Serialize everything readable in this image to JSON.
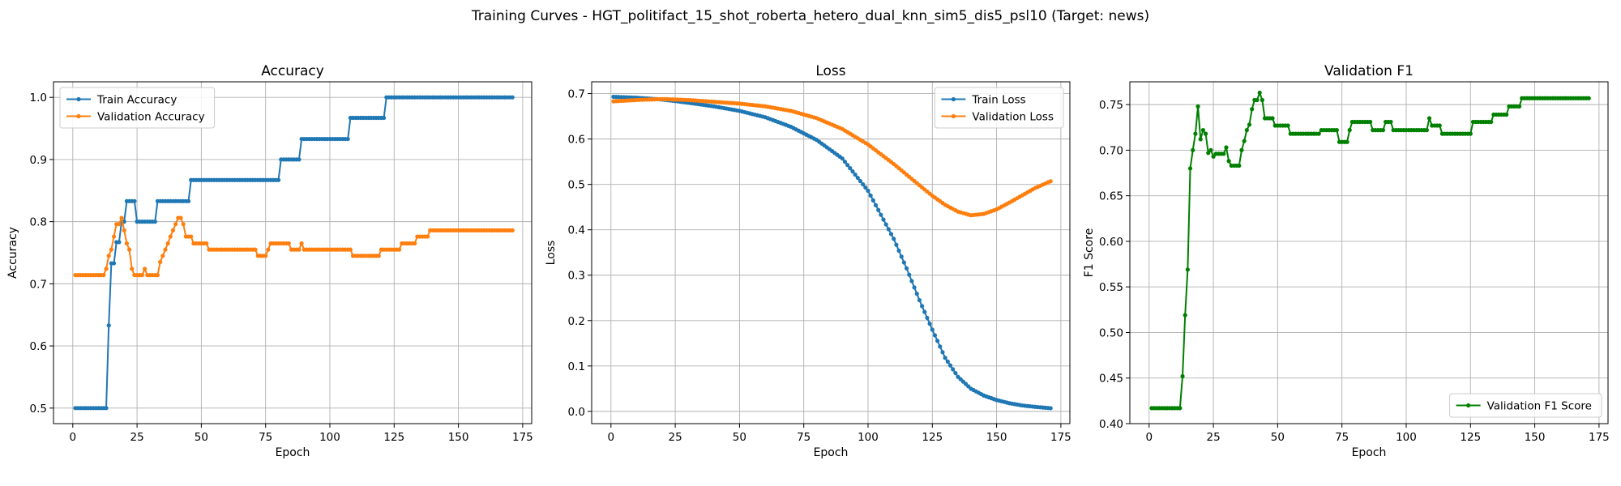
{
  "suptitle": "Training Curves - HGT_politifact_15_shot_roberta_hetero_dual_knn_sim5_dis5_psl10 (Target: news)",
  "chart_data": [
    {
      "type": "line",
      "title": "Accuracy",
      "xlabel": "Epoch",
      "ylabel": "Accuracy",
      "xlim": [
        -7.5,
        178.5
      ],
      "ylim": [
        0.475,
        1.025
      ],
      "xticks": [
        0,
        25,
        50,
        75,
        100,
        125,
        150,
        175
      ],
      "yticks": [
        0.5,
        0.6,
        0.7,
        0.8,
        0.9,
        1.0
      ],
      "ytick_labels": [
        "0.5",
        "0.6",
        "0.7",
        "0.8",
        "0.9",
        "1.0"
      ],
      "grid": true,
      "legend_position": "upper-left",
      "series": [
        {
          "name": "Train Accuracy",
          "color": "#1f77b4",
          "segments": [
            [
              1,
              0.5
            ],
            [
              13,
              0.5
            ],
            [
              14,
              0.633
            ],
            [
              15,
              0.733
            ],
            [
              16,
              0.733
            ],
            [
              17,
              0.767
            ],
            [
              18,
              0.767
            ],
            [
              19,
              0.8
            ],
            [
              20,
              0.8
            ],
            [
              21,
              0.833
            ],
            [
              24,
              0.833
            ],
            [
              25,
              0.8
            ],
            [
              32,
              0.8
            ],
            [
              33,
              0.833
            ],
            [
              45,
              0.833
            ],
            [
              46,
              0.867
            ],
            [
              80,
              0.867
            ],
            [
              81,
              0.9
            ],
            [
              88,
              0.9
            ],
            [
              89,
              0.933
            ],
            [
              107,
              0.933
            ],
            [
              108,
              0.967
            ],
            [
              121,
              0.967
            ],
            [
              122,
              1.0
            ],
            [
              171,
              1.0
            ]
          ]
        },
        {
          "name": "Validation Accuracy",
          "color": "#ff7f0e",
          "segments": [
            [
              1,
              0.714
            ],
            [
              12,
              0.714
            ],
            [
              13,
              0.724
            ],
            [
              14,
              0.745
            ],
            [
              15,
              0.755
            ],
            [
              16,
              0.776
            ],
            [
              17,
              0.796
            ],
            [
              18,
              0.796
            ],
            [
              19,
              0.806
            ],
            [
              20,
              0.786
            ],
            [
              21,
              0.765
            ],
            [
              22,
              0.755
            ],
            [
              23,
              0.724
            ],
            [
              24,
              0.714
            ],
            [
              27,
              0.714
            ],
            [
              28,
              0.724
            ],
            [
              29,
              0.714
            ],
            [
              33,
              0.714
            ],
            [
              34,
              0.735
            ],
            [
              35,
              0.745
            ],
            [
              36,
              0.755
            ],
            [
              37,
              0.765
            ],
            [
              38,
              0.776
            ],
            [
              39,
              0.786
            ],
            [
              40,
              0.796
            ],
            [
              41,
              0.806
            ],
            [
              42,
              0.806
            ],
            [
              43,
              0.796
            ],
            [
              44,
              0.776
            ],
            [
              46,
              0.776
            ],
            [
              47,
              0.765
            ],
            [
              52,
              0.765
            ],
            [
              53,
              0.755
            ],
            [
              71,
              0.755
            ],
            [
              72,
              0.745
            ],
            [
              75,
              0.745
            ],
            [
              76,
              0.755
            ],
            [
              77,
              0.765
            ],
            [
              84,
              0.765
            ],
            [
              85,
              0.755
            ],
            [
              88,
              0.755
            ],
            [
              89,
              0.765
            ],
            [
              90,
              0.755
            ],
            [
              108,
              0.755
            ],
            [
              109,
              0.745
            ],
            [
              119,
              0.745
            ],
            [
              120,
              0.755
            ],
            [
              127,
              0.755
            ],
            [
              128,
              0.765
            ],
            [
              133,
              0.765
            ],
            [
              134,
              0.776
            ],
            [
              138,
              0.776
            ],
            [
              139,
              0.786
            ],
            [
              171,
              0.786
            ]
          ]
        }
      ]
    },
    {
      "type": "line",
      "title": "Loss",
      "xlabel": "Epoch",
      "ylabel": "Loss",
      "xlim": [
        -7.5,
        178.5
      ],
      "ylim": [
        -0.027,
        0.726
      ],
      "xticks": [
        0,
        25,
        50,
        75,
        100,
        125,
        150,
        175
      ],
      "yticks": [
        0.0,
        0.1,
        0.2,
        0.3,
        0.4,
        0.5,
        0.6,
        0.7
      ],
      "ytick_labels": [
        "0.0",
        "0.1",
        "0.2",
        "0.3",
        "0.4",
        "0.5",
        "0.6",
        "0.7"
      ],
      "grid": true,
      "legend_position": "upper-right",
      "series": [
        {
          "name": "Train Loss",
          "color": "#1f77b4",
          "points": [
            [
              1,
              0.693
            ],
            [
              10,
              0.691
            ],
            [
              20,
              0.687
            ],
            [
              30,
              0.68
            ],
            [
              40,
              0.672
            ],
            [
              50,
              0.662
            ],
            [
              60,
              0.648
            ],
            [
              70,
              0.627
            ],
            [
              80,
              0.598
            ],
            [
              90,
              0.557
            ],
            [
              100,
              0.486
            ],
            [
              110,
              0.38
            ],
            [
              115,
              0.315
            ],
            [
              120,
              0.245
            ],
            [
              125,
              0.18
            ],
            [
              130,
              0.118
            ],
            [
              135,
              0.076
            ],
            [
              140,
              0.05
            ],
            [
              145,
              0.035
            ],
            [
              150,
              0.025
            ],
            [
              155,
              0.018
            ],
            [
              160,
              0.013
            ],
            [
              165,
              0.01
            ],
            [
              171,
              0.007
            ]
          ]
        },
        {
          "name": "Validation Loss",
          "color": "#ff7f0e",
          "points": [
            [
              1,
              0.683
            ],
            [
              10,
              0.686
            ],
            [
              20,
              0.688
            ],
            [
              30,
              0.686
            ],
            [
              40,
              0.682
            ],
            [
              50,
              0.678
            ],
            [
              60,
              0.672
            ],
            [
              70,
              0.662
            ],
            [
              80,
              0.646
            ],
            [
              90,
              0.622
            ],
            [
              100,
              0.588
            ],
            [
              110,
              0.545
            ],
            [
              120,
              0.498
            ],
            [
              125,
              0.475
            ],
            [
              130,
              0.455
            ],
            [
              135,
              0.44
            ],
            [
              140,
              0.432
            ],
            [
              145,
              0.435
            ],
            [
              150,
              0.445
            ],
            [
              155,
              0.46
            ],
            [
              160,
              0.476
            ],
            [
              165,
              0.492
            ],
            [
              171,
              0.507
            ]
          ]
        }
      ]
    },
    {
      "type": "line",
      "title": "Validation F1",
      "xlabel": "Epoch",
      "ylabel": "F1 Score",
      "xlim": [
        -7.5,
        178.5
      ],
      "ylim": [
        0.4,
        0.775
      ],
      "xticks": [
        0,
        25,
        50,
        75,
        100,
        125,
        150,
        175
      ],
      "yticks": [
        0.4,
        0.45,
        0.5,
        0.55,
        0.6,
        0.65,
        0.7,
        0.75
      ],
      "ytick_labels": [
        "0.40",
        "0.45",
        "0.50",
        "0.55",
        "0.60",
        "0.65",
        "0.70",
        "0.75"
      ],
      "grid": true,
      "legend_position": "lower-right",
      "series": [
        {
          "name": "Validation F1 Score",
          "color": "#008000",
          "segments": [
            [
              1,
              0.417
            ],
            [
              12,
              0.417
            ],
            [
              13,
              0.452
            ],
            [
              14,
              0.519
            ],
            [
              15,
              0.569
            ],
            [
              16,
              0.68
            ],
            [
              17,
              0.7
            ],
            [
              18,
              0.718
            ],
            [
              19,
              0.748
            ],
            [
              20,
              0.712
            ],
            [
              21,
              0.722
            ],
            [
              22,
              0.718
            ],
            [
              23,
              0.697
            ],
            [
              24,
              0.7
            ],
            [
              25,
              0.693
            ],
            [
              26,
              0.696
            ],
            [
              29,
              0.696
            ],
            [
              30,
              0.703
            ],
            [
              31,
              0.688
            ],
            [
              32,
              0.683
            ],
            [
              35,
              0.683
            ],
            [
              36,
              0.7
            ],
            [
              37,
              0.71
            ],
            [
              38,
              0.722
            ],
            [
              39,
              0.728
            ],
            [
              40,
              0.745
            ],
            [
              41,
              0.755
            ],
            [
              42,
              0.755
            ],
            [
              43,
              0.763
            ],
            [
              44,
              0.755
            ],
            [
              45,
              0.735
            ],
            [
              48,
              0.735
            ],
            [
              49,
              0.727
            ],
            [
              54,
              0.727
            ],
            [
              55,
              0.718
            ],
            [
              66,
              0.718
            ],
            [
              67,
              0.722
            ],
            [
              73,
              0.722
            ],
            [
              74,
              0.709
            ],
            [
              77,
              0.709
            ],
            [
              78,
              0.722
            ],
            [
              79,
              0.731
            ],
            [
              86,
              0.731
            ],
            [
              87,
              0.722
            ],
            [
              91,
              0.722
            ],
            [
              92,
              0.731
            ],
            [
              94,
              0.731
            ],
            [
              95,
              0.722
            ],
            [
              108,
              0.722
            ],
            [
              109,
              0.735
            ],
            [
              110,
              0.727
            ],
            [
              113,
              0.727
            ],
            [
              114,
              0.718
            ],
            [
              125,
              0.718
            ],
            [
              126,
              0.731
            ],
            [
              133,
              0.731
            ],
            [
              134,
              0.739
            ],
            [
              139,
              0.739
            ],
            [
              140,
              0.748
            ],
            [
              144,
              0.748
            ],
            [
              145,
              0.757
            ],
            [
              171,
              0.757
            ]
          ]
        }
      ]
    }
  ]
}
